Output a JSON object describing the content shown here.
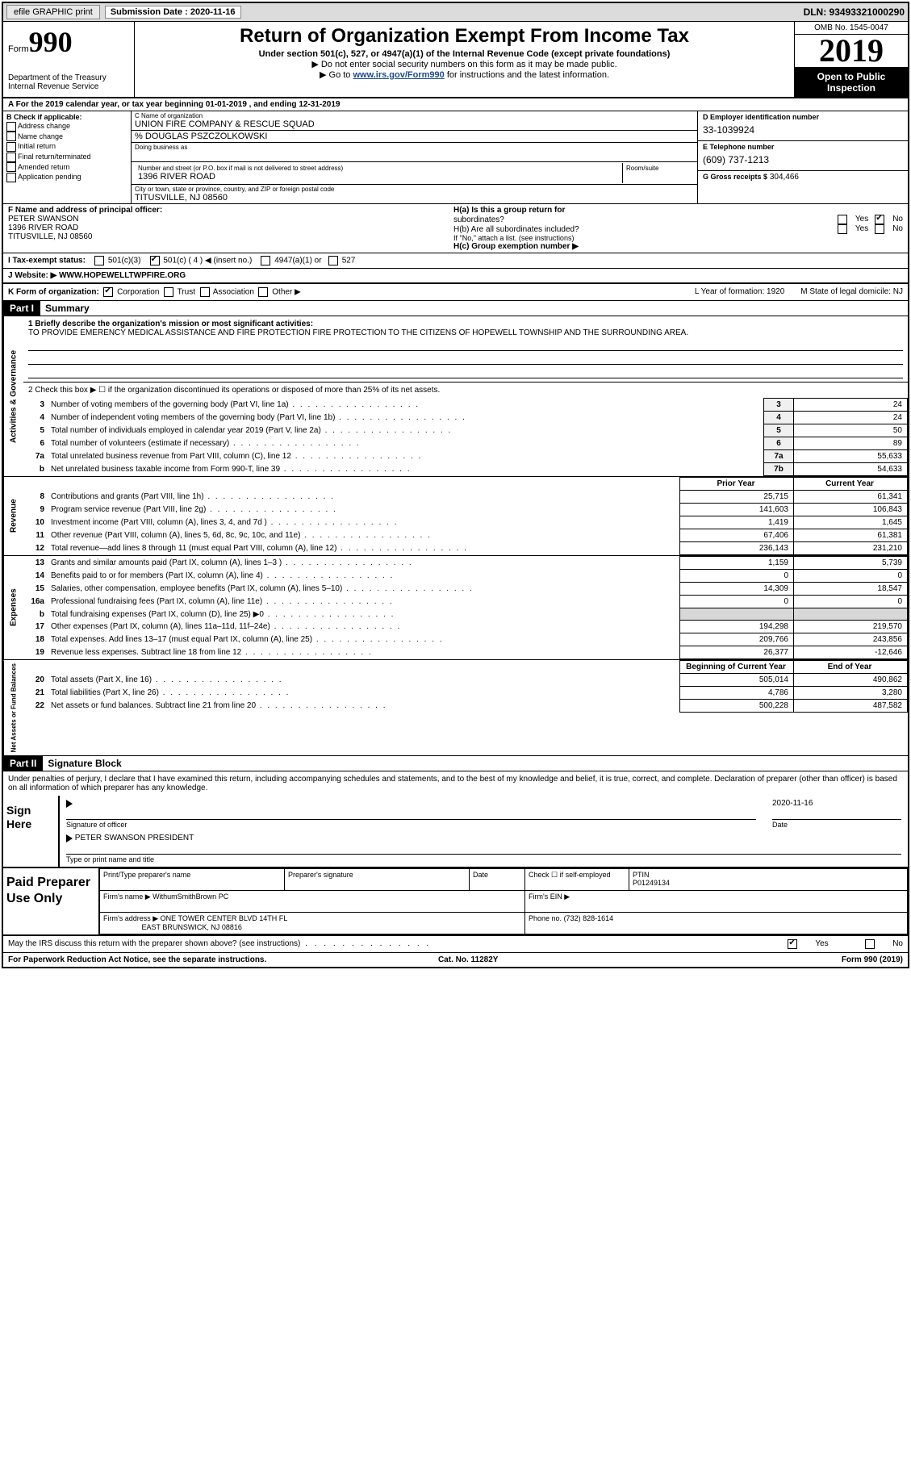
{
  "topbar": {
    "efile": "efile GRAPHIC print",
    "sub_label": "Submission Date : 2020-11-16",
    "dln": "DLN: 93493321000290"
  },
  "header": {
    "form_label": "Form",
    "form_no": "990",
    "dept": "Department of the Treasury\nInternal Revenue Service",
    "title": "Return of Organization Exempt From Income Tax",
    "sub1": "Under section 501(c), 527, or 4947(a)(1) of the Internal Revenue Code (except private foundations)",
    "sub2": "▶ Do not enter social security numbers on this form as it may be made public.",
    "sub3_pre": "▶ Go to ",
    "sub3_link": "www.irs.gov/Form990",
    "sub3_post": " for instructions and the latest information.",
    "omb": "OMB No. 1545-0047",
    "year": "2019",
    "otp": "Open to Public Inspection"
  },
  "period": {
    "a": "A For the 2019 calendar year, or tax year beginning 01-01-2019   , and ending 12-31-2019"
  },
  "B": {
    "title": "B Check if applicable:",
    "opts": [
      "Address change",
      "Name change",
      "Initial return",
      "Final return/terminated",
      "Amended return",
      "Application pending"
    ]
  },
  "C": {
    "name_lbl": "C Name of organization",
    "name": "UNION FIRE COMPANY & RESCUE SQUAD",
    "care": "% DOUGLAS PSZCZOLKOWSKI",
    "dba_lbl": "Doing business as",
    "addr_lbl": "Number and street (or P.O. box if mail is not delivered to street address)",
    "room_lbl": "Room/suite",
    "addr": "1396 RIVER ROAD",
    "city_lbl": "City or town, state or province, country, and ZIP or foreign postal code",
    "city": "TITUSVILLE, NJ  08560"
  },
  "D": {
    "ein_lbl": "D Employer identification number",
    "ein": "33-1039924",
    "tel_lbl": "E Telephone number",
    "tel": "(609) 737-1213",
    "gross_lbl": "G Gross receipts $",
    "gross": "304,466"
  },
  "F": {
    "lbl": "F Name and address of principal officer:",
    "name": "PETER SWANSON",
    "addr1": "1396 RIVER ROAD",
    "addr2": "TITUSVILLE, NJ  08560"
  },
  "H": {
    "a": "H(a)  Is this a group return for",
    "a2": "subordinates?",
    "b": "H(b)  Are all subordinates included?",
    "b2": "If \"No,\" attach a list. (see instructions)",
    "c": "H(c)  Group exemption number ▶"
  },
  "status": {
    "i_lbl": "I  Tax-exempt status:",
    "opts": [
      "501(c)(3)",
      "501(c) ( 4 ) ◀ (insert no.)",
      "4947(a)(1) or",
      "527"
    ],
    "checked_idx": 1
  },
  "website": {
    "lbl": "J Website: ▶",
    "val": "WWW.HOPEWELLTWPFIRE.ORG"
  },
  "K": {
    "lbl": "K Form of organization:",
    "opts": [
      "Corporation",
      "Trust",
      "Association",
      "Other ▶"
    ],
    "checked_idx": 0,
    "L": "L Year of formation: 1920",
    "M": "M State of legal domicile: NJ"
  },
  "part1": {
    "hdr": "Part I",
    "title": "Summary",
    "line1_lbl": "1  Briefly describe the organization's mission or most significant activities:",
    "mission": "TO PROVIDE EMERENCY MEDICAL ASSISTANCE AND FIRE PROTECTION FIRE PROTECTION TO THE CITIZENS OF HOPEWELL TOWNSHIP AND THE SURROUNDING AREA.",
    "line2": "2   Check this box ▶ ☐ if the organization discontinued its operations or disposed of more than 25% of its net assets.",
    "ag_rows": [
      {
        "n": "3",
        "t": "Number of voting members of the governing body (Part VI, line 1a)",
        "b": "3",
        "v": "24"
      },
      {
        "n": "4",
        "t": "Number of independent voting members of the governing body (Part VI, line 1b)",
        "b": "4",
        "v": "24"
      },
      {
        "n": "5",
        "t": "Total number of individuals employed in calendar year 2019 (Part V, line 2a)",
        "b": "5",
        "v": "50"
      },
      {
        "n": "6",
        "t": "Total number of volunteers (estimate if necessary)",
        "b": "6",
        "v": "89"
      },
      {
        "n": "7a",
        "t": "Total unrelated business revenue from Part VIII, column (C), line 12",
        "b": "7a",
        "v": "55,633"
      },
      {
        "n": "b",
        "t": "Net unrelated business taxable income from Form 990-T, line 39",
        "b": "7b",
        "v": "54,633"
      }
    ],
    "prior_lbl": "Prior Year",
    "curr_lbl": "Current Year",
    "rev_rows": [
      {
        "n": "8",
        "t": "Contributions and grants (Part VIII, line 1h)",
        "p": "25,715",
        "c": "61,341"
      },
      {
        "n": "9",
        "t": "Program service revenue (Part VIII, line 2g)",
        "p": "141,603",
        "c": "106,843"
      },
      {
        "n": "10",
        "t": "Investment income (Part VIII, column (A), lines 3, 4, and 7d )",
        "p": "1,419",
        "c": "1,645"
      },
      {
        "n": "11",
        "t": "Other revenue (Part VIII, column (A), lines 5, 6d, 8c, 9c, 10c, and 11e)",
        "p": "67,406",
        "c": "61,381"
      },
      {
        "n": "12",
        "t": "Total revenue—add lines 8 through 11 (must equal Part VIII, column (A), line 12)",
        "p": "236,143",
        "c": "231,210"
      }
    ],
    "exp_rows": [
      {
        "n": "13",
        "t": "Grants and similar amounts paid (Part IX, column (A), lines 1–3 )",
        "p": "1,159",
        "c": "5,739"
      },
      {
        "n": "14",
        "t": "Benefits paid to or for members (Part IX, column (A), line 4)",
        "p": "0",
        "c": "0"
      },
      {
        "n": "15",
        "t": "Salaries, other compensation, employee benefits (Part IX, column (A), lines 5–10)",
        "p": "14,309",
        "c": "18,547"
      },
      {
        "n": "16a",
        "t": "Professional fundraising fees (Part IX, column (A), line 11e)",
        "p": "0",
        "c": "0"
      },
      {
        "n": "b",
        "t": "Total fundraising expenses (Part IX, column (D), line 25) ▶0",
        "p": "",
        "c": "",
        "shaded": true
      },
      {
        "n": "17",
        "t": "Other expenses (Part IX, column (A), lines 11a–11d, 11f–24e)",
        "p": "194,298",
        "c": "219,570"
      },
      {
        "n": "18",
        "t": "Total expenses. Add lines 13–17 (must equal Part IX, column (A), line 25)",
        "p": "209,766",
        "c": "243,856"
      },
      {
        "n": "19",
        "t": "Revenue less expenses. Subtract line 18 from line 12",
        "p": "26,377",
        "c": "-12,646"
      }
    ],
    "na_hdr_p": "Beginning of Current Year",
    "na_hdr_c": "End of Year",
    "na_rows": [
      {
        "n": "20",
        "t": "Total assets (Part X, line 16)",
        "p": "505,014",
        "c": "490,862"
      },
      {
        "n": "21",
        "t": "Total liabilities (Part X, line 26)",
        "p": "4,786",
        "c": "3,280"
      },
      {
        "n": "22",
        "t": "Net assets or fund balances. Subtract line 21 from line 20",
        "p": "500,228",
        "c": "487,582"
      }
    ]
  },
  "part2": {
    "hdr": "Part II",
    "title": "Signature Block",
    "declaration": "Under penalties of perjury, I declare that I have examined this return, including accompanying schedules and statements, and to the best of my knowledge and belief, it is true, correct, and complete. Declaration of preparer (other than officer) is based on all information of which preparer has any knowledge.",
    "sign_here": "Sign Here",
    "sig_lbl": "Signature of officer",
    "date_lbl": "Date",
    "date_val": "2020-11-16",
    "name_val": "PETER SWANSON  PRESIDENT",
    "name_lbl": "Type or print name and title",
    "paid": "Paid Preparer Use Only",
    "prep_name_lbl": "Print/Type preparer's name",
    "prep_sig_lbl": "Preparer's signature",
    "prep_date_lbl": "Date",
    "prep_check": "Check ☐ if self-employed",
    "ptin_lbl": "PTIN",
    "ptin": "P01249134",
    "firm_name_lbl": "Firm's name  ▶",
    "firm_name": "WithumSmithBrown PC",
    "firm_ein_lbl": "Firm's EIN ▶",
    "firm_addr_lbl": "Firm's address ▶",
    "firm_addr1": "ONE TOWER CENTER BLVD 14TH FL",
    "firm_addr2": "EAST BRUNSWICK, NJ  08816",
    "phone_lbl": "Phone no.",
    "phone": "(732) 828-1614",
    "discuss": "May the IRS discuss this return with the preparer shown above? (see instructions)",
    "yes": "Yes",
    "no": "No"
  },
  "footer": {
    "l": "For Paperwork Reduction Act Notice, see the separate instructions.",
    "m": "Cat. No. 11282Y",
    "r": "Form 990 (2019)"
  },
  "style": {
    "bg": "#ffffff",
    "border": "#000000",
    "header_bg": "#000000",
    "shaded": "#d8d8d8",
    "link": "#1a4b8b"
  }
}
